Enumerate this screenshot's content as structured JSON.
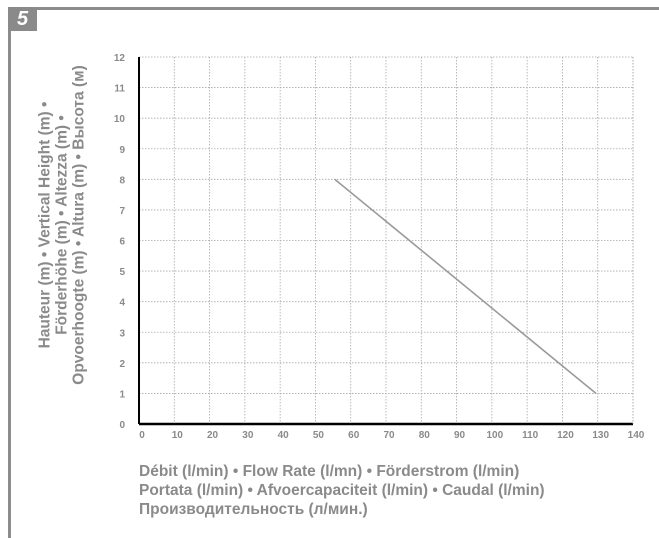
{
  "badge": "5",
  "chart_data": {
    "type": "line",
    "ylabel_lines": [
      "Hauteur (m) • Vertical Height (m) •",
      "Förderhöhe (m) • Altezza (m) •",
      "Opvoerhoogte (m) • Altura (m) • Высота (м)"
    ],
    "xlabel_lines": [
      "Débit (l/min) • Flow Rate (l/mn) • Förderstrom (l/min)",
      "Portata (l/min) • Afvoercapaciteit (l/min) • Caudal (l/min)",
      "Производительность (л/мин.)"
    ],
    "xlim": [
      0,
      140
    ],
    "ylim": [
      0,
      12
    ],
    "x_ticks": [
      "0",
      "10",
      "20",
      "30",
      "40",
      "50",
      "60",
      "70",
      "80",
      "90",
      "100",
      "110",
      "120",
      "130",
      "140"
    ],
    "y_ticks": [
      "0",
      "1",
      "2",
      "3",
      "4",
      "5",
      "6",
      "7",
      "8",
      "9",
      "10",
      "11",
      "12"
    ],
    "grid": true,
    "series": [
      {
        "x": [
          55.5,
          129.5
        ],
        "y": [
          8,
          1
        ]
      }
    ],
    "colors": {
      "line": "#9a9a9a",
      "grid": "#a8a8a8",
      "axis": "#000000",
      "text": "#8a8a8a"
    }
  }
}
